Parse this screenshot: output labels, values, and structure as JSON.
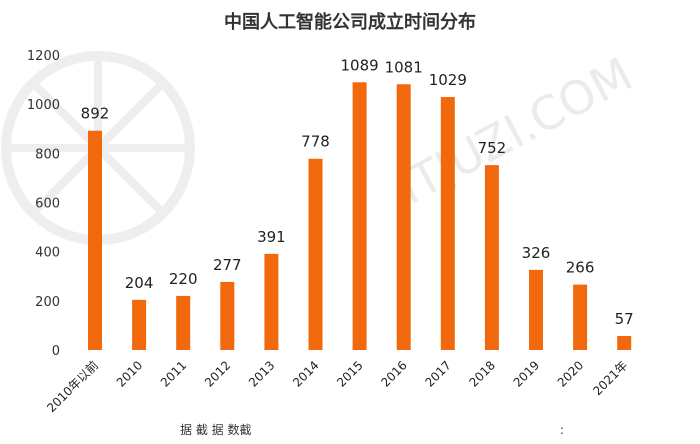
{
  "chart_data": {
    "type": "bar",
    "title": "中国人工智能公司成立时间分布",
    "categories": [
      "2010年以前",
      "2010",
      "2011",
      "2012",
      "2013",
      "2014",
      "2015",
      "2016",
      "2017",
      "2018",
      "2019",
      "2020",
      "2021年"
    ],
    "values": [
      892,
      204,
      220,
      277,
      391,
      778,
      1089,
      1081,
      1029,
      752,
      326,
      266,
      57
    ],
    "ylim": [
      0,
      1200
    ],
    "yticks": [
      0,
      200,
      400,
      600,
      800,
      1000,
      1200
    ],
    "grid": false,
    "colors": {
      "bar": "#f2690d"
    }
  },
  "watermark": "ITJUZI.COM",
  "source_note": "据 截 据 数截",
  "source_suffix": ":"
}
